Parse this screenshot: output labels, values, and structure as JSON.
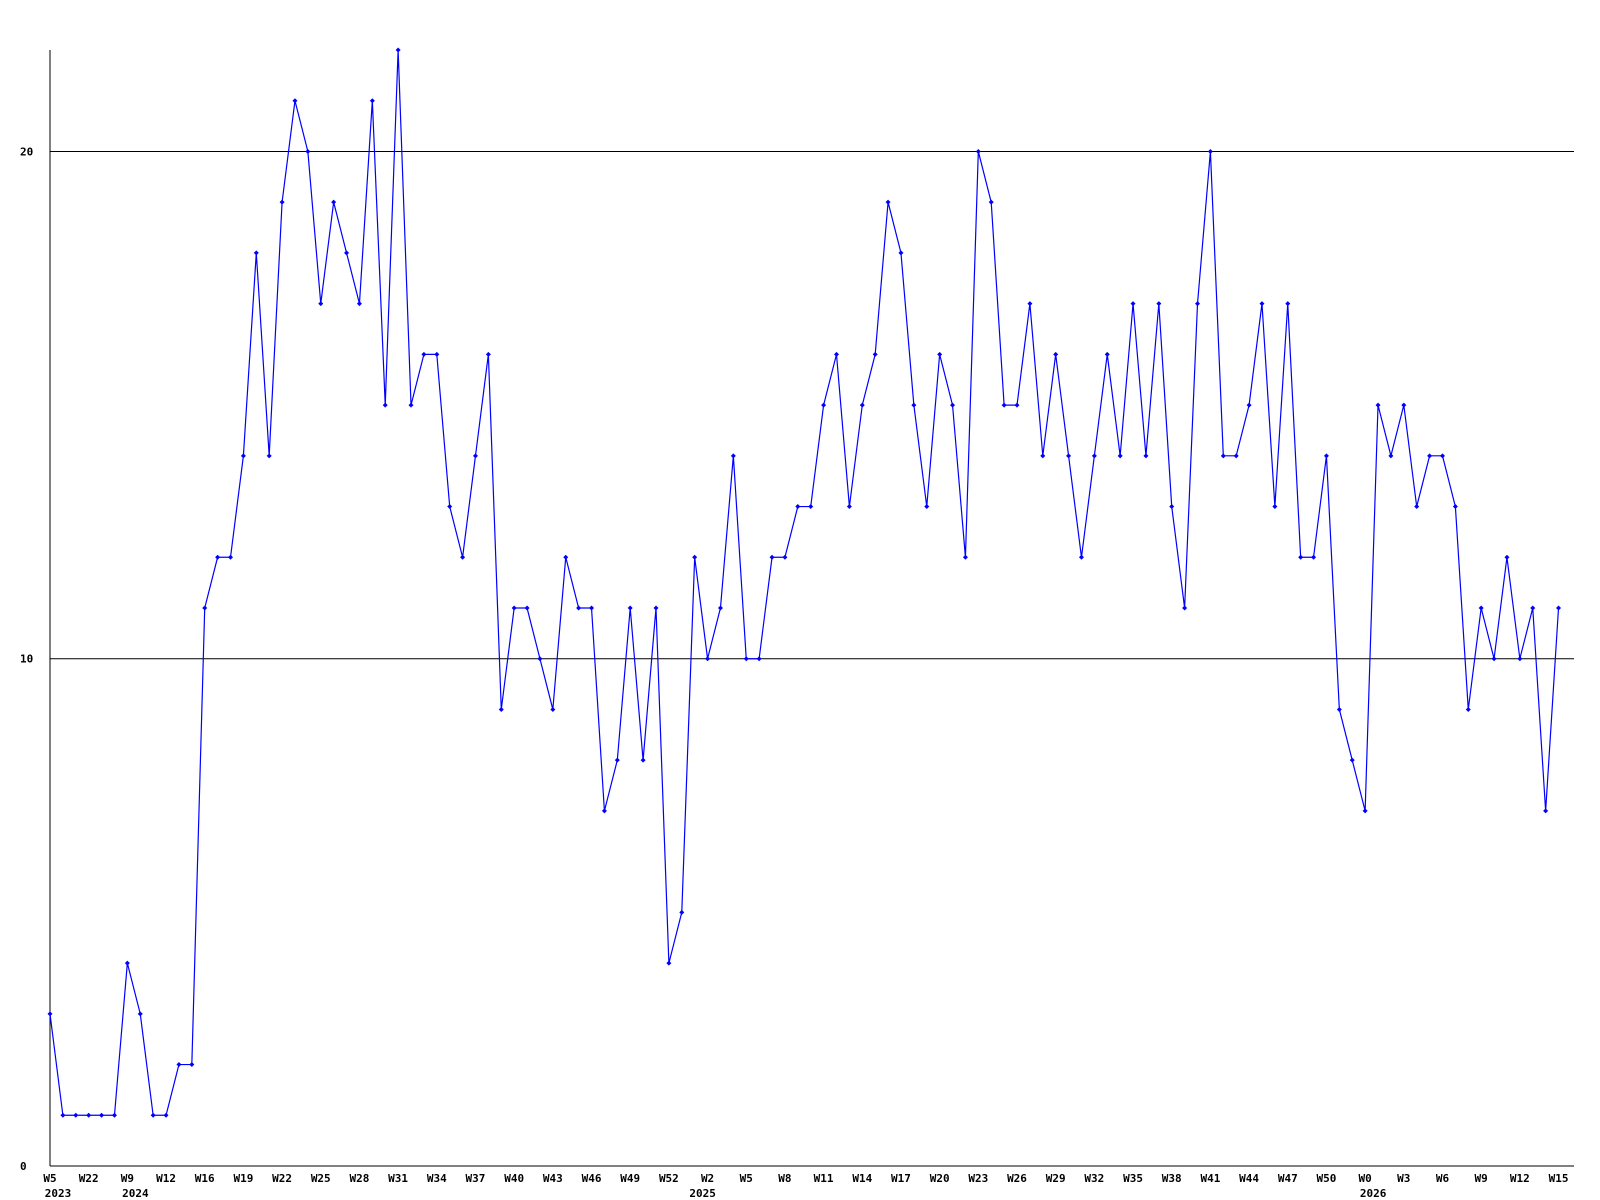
{
  "chart_data": {
    "type": "line",
    "categories": [
      "W5",
      null,
      null,
      "W22",
      null,
      null,
      "W9",
      null,
      null,
      "W12",
      null,
      null,
      "W16",
      null,
      null,
      "W19",
      null,
      null,
      "W22",
      null,
      null,
      "W25",
      null,
      null,
      "W28",
      null,
      null,
      "W31",
      null,
      null,
      "W34",
      null,
      null,
      "W37",
      null,
      null,
      "W40",
      null,
      null,
      "W43",
      null,
      null,
      "W46",
      null,
      null,
      "W49",
      null,
      null,
      "W52",
      null,
      null,
      "W2",
      null,
      null,
      "W5",
      null,
      null,
      "W8",
      null,
      null,
      "W11",
      null,
      null,
      "W14",
      null,
      null,
      "W17",
      null,
      null,
      "W20",
      null,
      null,
      "W23",
      null,
      null,
      "W26",
      null,
      null,
      "W29",
      null,
      null,
      "W32",
      null,
      null,
      "W35",
      null,
      null,
      "W38",
      null,
      null,
      "W41",
      null,
      null,
      "W44",
      null,
      null,
      "W47",
      null,
      null,
      "W50",
      null,
      null,
      "W0",
      null,
      null,
      "W3",
      null,
      null,
      "W6",
      null,
      null,
      "W9",
      null,
      null,
      "W12",
      null,
      null,
      "W15"
    ],
    "years": [
      "2023",
      null,
      null,
      null,
      null,
      null,
      "2024",
      null,
      null,
      null,
      null,
      null,
      null,
      null,
      null,
      null,
      null,
      null,
      null,
      null,
      null,
      null,
      null,
      null,
      null,
      null,
      null,
      null,
      null,
      null,
      null,
      null,
      null,
      null,
      null,
      null,
      null,
      null,
      null,
      null,
      null,
      null,
      null,
      null,
      null,
      null,
      null,
      null,
      null,
      null,
      "2025",
      null,
      null,
      null,
      null,
      null,
      null,
      null,
      null,
      null,
      null,
      null,
      null,
      null,
      null,
      null,
      null,
      null,
      null,
      null,
      null,
      null,
      null,
      null,
      null,
      null,
      null,
      null,
      null,
      null,
      null,
      null,
      null,
      null,
      null,
      null,
      null,
      null,
      null,
      null,
      null,
      null,
      null,
      null,
      null,
      null,
      null,
      null,
      null,
      null,
      null,
      null,
      "2026",
      null,
      null,
      null,
      null,
      null,
      null,
      null,
      null,
      null,
      null,
      null,
      null,
      null,
      null,
      null
    ],
    "series": [
      {
        "color": "#0000ff",
        "values": [
          3,
          1,
          1,
          1,
          1,
          1,
          4,
          3,
          1,
          1,
          2,
          2,
          11,
          12,
          12,
          14,
          18,
          14,
          19,
          21,
          20,
          17,
          19,
          18,
          17,
          21,
          15,
          22,
          15,
          16,
          16,
          13,
          12,
          14,
          16,
          9,
          11,
          11,
          10,
          9,
          12,
          11,
          11,
          7,
          8,
          11,
          8,
          11,
          4,
          5,
          12,
          10,
          11,
          14,
          10,
          10,
          12,
          12,
          13,
          13,
          15,
          16,
          13,
          15,
          16,
          19,
          18,
          15,
          13,
          16,
          15,
          12,
          20,
          19,
          15,
          15,
          17,
          14,
          16,
          14,
          12,
          14,
          16,
          14,
          17,
          14,
          17,
          13,
          11,
          17,
          20,
          14,
          14,
          15,
          17,
          13,
          17,
          12,
          12,
          14,
          9,
          8,
          7,
          15,
          14,
          15,
          13,
          14,
          14,
          13,
          9,
          11,
          10,
          12,
          10,
          11,
          7,
          11
        ]
      }
    ],
    "ylim": [
      0,
      22
    ],
    "yticks": [
      0,
      10,
      20
    ],
    "grid": true
  }
}
